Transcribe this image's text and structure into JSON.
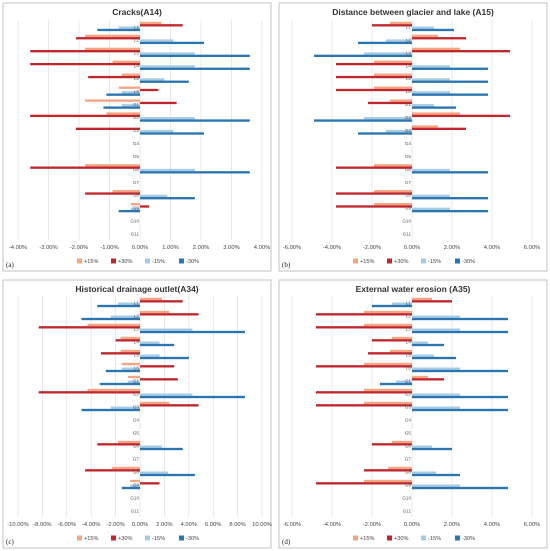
{
  "chart_data": [
    {
      "type": "bar",
      "orientation": "horizontal",
      "title": "Cracks(A14)",
      "panel_label": "(a)",
      "x_range": [
        -0.04,
        0.04
      ],
      "x_ticks": [
        "-4.00%",
        "-3.00%",
        "-2.00%",
        "-1.00%",
        "0.00%",
        "1.00%",
        "2.00%",
        "3.00%",
        "4.00%"
      ],
      "categories": [
        "L1",
        "L2",
        "L3",
        "L4",
        "L5",
        "L6",
        "G1",
        "G2",
        "G3",
        "G4",
        "G5",
        "G6",
        "G7",
        "G8",
        "G9",
        "G10",
        "G11"
      ],
      "series": [
        {
          "name": "+15%",
          "color": "#f4a582",
          "values": [
            0.007,
            -0.018,
            -0.018,
            -0.009,
            -0.006,
            -0.007,
            -0.018,
            -0.011,
            0,
            0,
            0,
            -0.018,
            0,
            -0.009,
            -0.003,
            0,
            0
          ]
        },
        {
          "name": "+30%",
          "color": "#c0272d",
          "values": [
            0.014,
            -0.021,
            -0.036,
            -0.036,
            -0.017,
            0.006,
            0.012,
            -0.036,
            -0.021,
            0,
            0,
            -0.036,
            0,
            -0.018,
            0.003,
            0,
            0
          ]
        },
        {
          "name": "-15%",
          "color": "#a6cbe3",
          "values": [
            -0.007,
            0.011,
            0.018,
            0.018,
            0.008,
            -0.006,
            -0.006,
            0.018,
            0.011,
            0,
            0,
            0.018,
            0,
            0.009,
            -0.003,
            0,
            0
          ]
        },
        {
          "name": "-30%",
          "color": "#2a74b0",
          "values": [
            -0.014,
            0.021,
            0.036,
            0.036,
            0.016,
            -0.011,
            -0.012,
            0.036,
            0.021,
            0,
            0,
            0.036,
            0,
            0.018,
            -0.007,
            0,
            0
          ]
        }
      ]
    },
    {
      "type": "bar",
      "orientation": "horizontal",
      "title": "Distance between glacier and lake (A15)",
      "panel_label": "(b)",
      "x_range": [
        -0.06,
        0.06
      ],
      "x_ticks": [
        "-6.00%",
        "-4.00%",
        "-2.00%",
        "0.00%",
        "2.00%",
        "4.00%",
        "6.00%"
      ],
      "categories": [
        "L1",
        "L2",
        "L3",
        "L4",
        "L5",
        "L6",
        "G1",
        "G2",
        "G3",
        "G4",
        "G5",
        "G6",
        "G7",
        "G8",
        "G9",
        "G10",
        "G11"
      ],
      "series": [
        {
          "name": "+15%",
          "color": "#f4a582",
          "values": [
            -0.011,
            0.013,
            0.024,
            -0.019,
            -0.019,
            -0.019,
            -0.011,
            0.024,
            0.013,
            0,
            0,
            -0.019,
            0,
            -0.019,
            -0.019,
            0,
            0
          ]
        },
        {
          "name": "+30%",
          "color": "#c0272d",
          "values": [
            -0.02,
            0.027,
            0.049,
            -0.038,
            -0.038,
            -0.038,
            -0.022,
            0.049,
            0.027,
            0,
            0,
            -0.038,
            0,
            -0.038,
            -0.038,
            0,
            0
          ]
        },
        {
          "name": "-15%",
          "color": "#a6cbe3",
          "values": [
            0.011,
            -0.013,
            -0.024,
            0.019,
            0.019,
            0.019,
            0.011,
            -0.024,
            -0.013,
            0,
            0,
            0.019,
            0,
            0.019,
            0.019,
            0,
            0
          ]
        },
        {
          "name": "-30%",
          "color": "#2a74b0",
          "values": [
            0.021,
            -0.027,
            -0.049,
            0.038,
            0.038,
            0.038,
            0.022,
            -0.049,
            -0.027,
            0,
            0,
            0.038,
            0,
            0.038,
            0.038,
            0,
            0
          ]
        }
      ]
    },
    {
      "type": "bar",
      "orientation": "horizontal",
      "title": "Historical drainage outlet(A34)",
      "panel_label": "(c)",
      "x_range": [
        -0.1,
        0.1
      ],
      "x_ticks": [
        "-10.00%",
        "-8.00%",
        "-6.00%",
        "-4.00%",
        "-2.00%",
        "0.00%",
        "2.00%",
        "4.00%",
        "6.00%",
        "8.00%",
        "10.00%"
      ],
      "categories": [
        "L1",
        "L2",
        "L3",
        "L4",
        "L5",
        "L6",
        "G1",
        "G2",
        "G3",
        "G4",
        "G5",
        "G6",
        "G7",
        "G8",
        "G9",
        "G10",
        "G11"
      ],
      "series": [
        {
          "name": "+15%",
          "color": "#f4a582",
          "values": [
            0.018,
            0.024,
            -0.043,
            -0.016,
            -0.016,
            -0.015,
            -0.01,
            -0.043,
            0.024,
            0,
            0,
            -0.018,
            0,
            -0.023,
            -0.008,
            0,
            0
          ]
        },
        {
          "name": "+30%",
          "color": "#c0272d",
          "values": [
            0.035,
            0.048,
            -0.083,
            -0.02,
            -0.032,
            0.028,
            0.031,
            -0.083,
            0.048,
            0,
            0,
            -0.035,
            0,
            -0.045,
            0.016,
            0,
            0
          ]
        },
        {
          "name": "-15%",
          "color": "#a6cbe3",
          "values": [
            -0.018,
            -0.024,
            0.043,
            0.016,
            0.016,
            -0.015,
            -0.01,
            0.043,
            -0.024,
            0,
            0,
            0.018,
            0,
            0.023,
            -0.008,
            0,
            0
          ]
        },
        {
          "name": "-30%",
          "color": "#2a74b0",
          "values": [
            -0.035,
            -0.048,
            0.086,
            0.028,
            0.04,
            -0.028,
            -0.033,
            0.086,
            -0.048,
            0,
            0,
            0.035,
            0,
            0.045,
            -0.015,
            0,
            0
          ]
        }
      ]
    },
    {
      "type": "bar",
      "orientation": "horizontal",
      "title": "External water erosion (A35)",
      "panel_label": "(d)",
      "x_range": [
        -0.06,
        0.06
      ],
      "x_ticks": [
        "-6.00%",
        "-4.00%",
        "-2.00%",
        "0.00%",
        "2.00%",
        "4.00%",
        "6.00%"
      ],
      "categories": [
        "L1",
        "L2",
        "L3",
        "L4",
        "L5",
        "L6",
        "G1",
        "G2",
        "G3",
        "G4",
        "G5",
        "G6",
        "G7",
        "G8",
        "G9",
        "G10",
        "G11"
      ],
      "series": [
        {
          "name": "+15%",
          "color": "#f4a582",
          "values": [
            0.01,
            -0.024,
            -0.024,
            -0.01,
            -0.011,
            -0.024,
            0.008,
            -0.024,
            -0.024,
            0,
            0,
            -0.01,
            0,
            -0.012,
            -0.024,
            0,
            0
          ]
        },
        {
          "name": "+30%",
          "color": "#c0272d",
          "values": [
            0.02,
            -0.048,
            -0.048,
            -0.02,
            -0.022,
            -0.048,
            0.016,
            -0.048,
            -0.048,
            0,
            0,
            -0.02,
            0,
            -0.024,
            -0.048,
            0,
            0
          ]
        },
        {
          "name": "-15%",
          "color": "#a6cbe3",
          "values": [
            -0.01,
            0.024,
            0.024,
            0.008,
            0.011,
            0.024,
            -0.008,
            0.024,
            0.024,
            0,
            0,
            0.01,
            0,
            0.012,
            0.024,
            0,
            0
          ]
        },
        {
          "name": "-30%",
          "color": "#2a74b0",
          "values": [
            -0.02,
            0.048,
            0.048,
            0.016,
            0.022,
            0.048,
            -0.016,
            0.048,
            0.048,
            0,
            0,
            0.02,
            0,
            0.024,
            0.048,
            0,
            0
          ]
        }
      ]
    }
  ]
}
